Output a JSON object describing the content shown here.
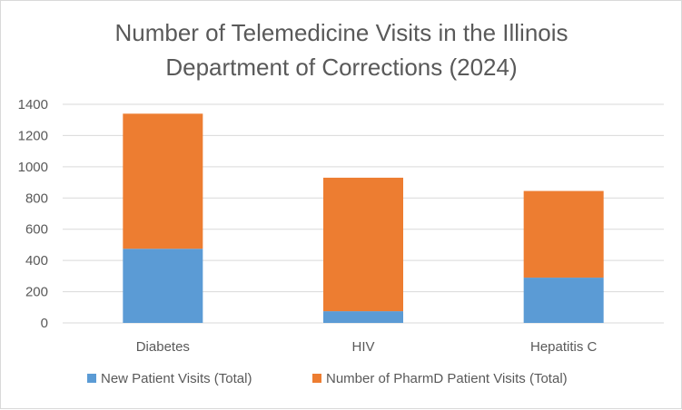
{
  "chart_data": {
    "type": "bar",
    "stacked": true,
    "title": "Number of Telemedicine Visits in the Illinois Department of Corrections (2024)",
    "title_lines": [
      "Number of Telemedicine Visits in the Illinois",
      "Department of Corrections (2024)"
    ],
    "categories": [
      "Diabetes",
      "HIV",
      "Hepatitis C"
    ],
    "series": [
      {
        "name": "New Patient Visits (Total)",
        "color": "#5b9bd5",
        "values": [
          475,
          75,
          290
        ]
      },
      {
        "name": "Number of PharmD Patient Visits (Total)",
        "color": "#ed7d31",
        "values": [
          865,
          855,
          555
        ]
      }
    ],
    "xlabel": "",
    "ylabel": "",
    "ylim": [
      0,
      1400
    ],
    "yticks": [
      0,
      200,
      400,
      600,
      800,
      1000,
      1200,
      1400
    ],
    "grid": true,
    "legend_position": "bottom"
  },
  "colors": {
    "grid": "#d9d9d9",
    "text": "#595959"
  }
}
